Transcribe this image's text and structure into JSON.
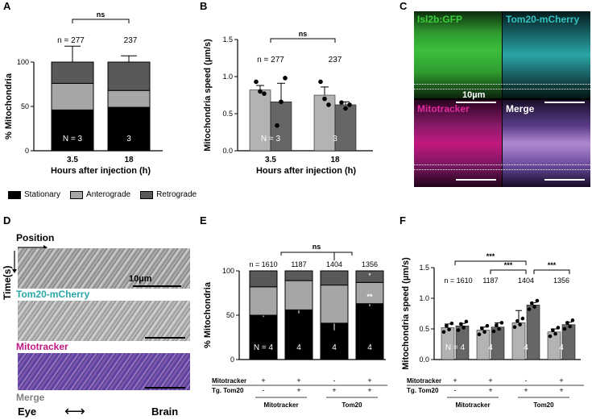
{
  "panel_labels": {
    "A": "A",
    "B": "B",
    "C": "C",
    "D": "D",
    "E": "E",
    "F": "F"
  },
  "colors": {
    "stationary": "#000000",
    "anterograde": "#a6a6a6",
    "retrograde": "#595959",
    "bar_light": "#b3b3b3",
    "bar_dark": "#666666",
    "green": "#2e9e2e",
    "cyan": "#2aa6a6",
    "magenta": "#c2187f",
    "merge": "#808080"
  },
  "chart_data": [
    {
      "id": "A",
      "type": "bar",
      "ylabel": "% Mitochondria",
      "xlabel": "Hours after injection (h)",
      "categories": [
        "3.5",
        "18"
      ],
      "ylim": [
        0,
        100
      ],
      "yticks": [
        "0",
        "50",
        "100"
      ],
      "series": [
        {
          "name": "Stationary",
          "values": [
            46,
            49
          ],
          "errors": [
            null,
            null
          ]
        },
        {
          "name": "Anterograde",
          "values": [
            30,
            19
          ],
          "errors": [
            10,
            9
          ]
        },
        {
          "name": "Retrograde",
          "values": [
            24,
            32
          ],
          "errors": [
            18,
            7
          ]
        }
      ],
      "n_labels": [
        "n = 277",
        "237"
      ],
      "N_labels": [
        "N = 3",
        "3"
      ],
      "significance": "ns",
      "legend": [
        "Stationary",
        "Anterograde",
        "Retrograde"
      ]
    },
    {
      "id": "B",
      "type": "bar",
      "ylabel": "Mitochondria speed (µm/s)",
      "xlabel": "Hours after injection (h)",
      "categories": [
        "3.5",
        "18"
      ],
      "ylim": [
        0,
        1.5
      ],
      "yticks": [
        "0.0",
        "0.5",
        "1.0",
        "1.5"
      ],
      "series": [
        {
          "name": "Anterograde",
          "values": [
            0.82,
            0.75
          ],
          "errors": [
            0.06,
            0.11
          ]
        },
        {
          "name": "Retrograde",
          "values": [
            0.66,
            0.62
          ],
          "errors": [
            0.25,
            0.04
          ]
        }
      ],
      "points": [
        [
          [
            0.93,
            0.8,
            0.77
          ],
          [
            0.34,
            0.66,
            0.98
          ]
        ],
        [
          [
            0.93,
            0.7,
            0.62
          ],
          [
            0.65,
            0.57,
            0.62
          ]
        ]
      ],
      "n_labels": [
        "n = 277",
        "237"
      ],
      "N_labels": [
        "N = 3",
        "3"
      ],
      "significance": "ns"
    },
    {
      "id": "E",
      "type": "bar",
      "ylabel": "% Mitochondria",
      "categories": [
        "1",
        "2",
        "3",
        "4"
      ],
      "ylim": [
        0,
        100
      ],
      "yticks": [
        "0",
        "50",
        "100"
      ],
      "series": [
        {
          "name": "Stationary",
          "values": [
            50,
            56,
            41,
            63
          ],
          "errors": [
            2,
            4,
            8,
            3
          ]
        },
        {
          "name": "Anterograde",
          "values": [
            32,
            33,
            43,
            24
          ],
          "errors": [
            null,
            null,
            null,
            null
          ]
        },
        {
          "name": "Retrograde",
          "values": [
            18,
            11,
            16,
            13
          ],
          "errors": [
            null,
            null,
            null,
            null
          ]
        }
      ],
      "n_labels": [
        "n = 1610",
        "1187",
        "1404",
        "1356"
      ],
      "N_labels": [
        "N = 4",
        "4",
        "4",
        "4"
      ],
      "significance": "ns",
      "stars": "**",
      "mark": "*",
      "table": {
        "row1": "Mitotracker",
        "row2": "Tg. Tom20",
        "row1_vals": [
          "+",
          "+",
          "-",
          "+"
        ],
        "row2_vals": [
          "-",
          "+",
          "+",
          "+"
        ],
        "group1": "Mitotracker",
        "group2": "Tom20"
      }
    },
    {
      "id": "F",
      "type": "bar",
      "ylabel": "Mitochondria speed (µm/s)",
      "categories": [
        "1",
        "2",
        "3",
        "4"
      ],
      "ylim": [
        0,
        1.5
      ],
      "yticks": [
        "0.0",
        "0.5",
        "1.0",
        "1.5"
      ],
      "series": [
        {
          "name": "Anterograde",
          "values": [
            0.52,
            0.48,
            0.6,
            0.45
          ],
          "errors": [
            0.06,
            0.05,
            0.2,
            0.05
          ]
        },
        {
          "name": "Retrograde",
          "values": [
            0.55,
            0.53,
            0.89,
            0.57
          ],
          "errors": [
            0.04,
            0.07,
            0.04,
            0.04
          ]
        }
      ],
      "n_labels": [
        "n = 1610",
        "1187",
        "1404",
        "1356"
      ],
      "N_labels": [
        "N = 4",
        "4",
        "4",
        "4"
      ],
      "significance": [
        "***",
        "***",
        "***"
      ],
      "table": {
        "row1": "Mitotracker",
        "row2": "Tg. Tom20",
        "row1_vals": [
          "+",
          "+",
          "-",
          "+"
        ],
        "row2_vals": [
          "-",
          "+",
          "+",
          "+"
        ],
        "group1": "Mitotracker",
        "group2": "Tom20"
      }
    }
  ],
  "panel_c": {
    "isl2b": "Isl2b:GFP",
    "tom20": "Tom20-mCherry",
    "mitotracker": "Mitotracker",
    "merge": "Merge",
    "scale": "10µm"
  },
  "panel_d": {
    "position": "Position",
    "time": "Time(s)",
    "scale": "10µm",
    "tom20": "Tom20-mCherry",
    "mitotracker": "Mitotracker",
    "merge": "Merge",
    "eye": "Eye",
    "brain": "Brain",
    "arrow": "⟷"
  }
}
